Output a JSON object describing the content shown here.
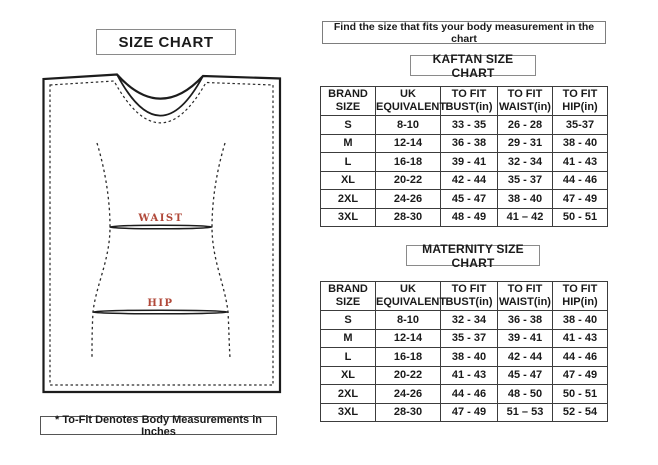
{
  "left_panel": {
    "title": "SIZE CHART",
    "diagram": {
      "waist_label": "WAIST",
      "hip_label": "HIP",
      "label_color": "#b1493a",
      "line_color": "#1c1c1c"
    },
    "footnote": "* To-Fit Denotes Body Measurements in Inches"
  },
  "right_panel": {
    "instruction": "Find the size that fits your body measurement in the chart",
    "tables": [
      {
        "title": "KAFTAN SIZE CHART",
        "columns": [
          "BRAND\nSIZE",
          "UK\nEQUIVALENT",
          "TO FIT\nBUST(in)",
          "TO FIT\nWAIST(in)",
          "TO FIT\nHIP(in)"
        ],
        "rows": [
          [
            "S",
            "8-10",
            "33 - 35",
            "26 - 28",
            "35-37"
          ],
          [
            "M",
            "12-14",
            "36 - 38",
            "29 - 31",
            "38 - 40"
          ],
          [
            "L",
            "16-18",
            "39 - 41",
            "32 - 34",
            "41 - 43"
          ],
          [
            "XL",
            "20-22",
            "42 - 44",
            "35 - 37",
            "44 - 46"
          ],
          [
            "2XL",
            "24-26",
            "45 - 47",
            "38 - 40",
            "47 - 49"
          ],
          [
            "3XL",
            "28-30",
            "48 - 49",
            "41 – 42",
            "50 - 51"
          ]
        ]
      },
      {
        "title": "MATERNITY SIZE CHART",
        "columns": [
          "BRAND\nSIZE",
          "UK\nEQUIVALENT",
          "TO FIT\nBUST(in)",
          "TO FIT\nWAIST(in)",
          "TO FIT\nHIP(in)"
        ],
        "rows": [
          [
            "S",
            "8-10",
            "32 - 34",
            "36 - 38",
            "38 - 40"
          ],
          [
            "M",
            "12-14",
            "35 - 37",
            "39 - 41",
            "41 - 43"
          ],
          [
            "L",
            "16-18",
            "38 - 40",
            "42 - 44",
            "44 - 46"
          ],
          [
            "XL",
            "20-22",
            "41 - 43",
            "45 - 47",
            "47 - 49"
          ],
          [
            "2XL",
            "24-26",
            "44 - 46",
            "48 - 50",
            "50 - 51"
          ],
          [
            "3XL",
            "28-30",
            "47 - 49",
            "51 – 53",
            "52 - 54"
          ]
        ]
      }
    ]
  }
}
